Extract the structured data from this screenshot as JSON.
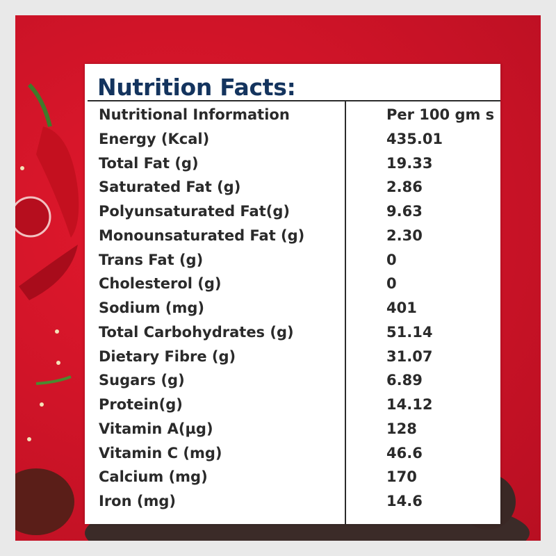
{
  "title": "Nutrition Facts:",
  "header": {
    "label": "Nutritional Information",
    "value": "Per 100 gm s"
  },
  "rows": [
    {
      "label": "Energy (Kcal)",
      "value": "435.01"
    },
    {
      "label": "Total Fat (g)",
      "value": "19.33"
    },
    {
      "label": "Saturated Fat (g)",
      "value": "2.86"
    },
    {
      "label": "Polyunsaturated Fat(g)",
      "value": "9.63"
    },
    {
      "label": "Monounsaturated Fat (g)",
      "value": "2.30"
    },
    {
      "label": "Trans Fat (g)",
      "value": "0"
    },
    {
      "label": "Cholesterol (g)",
      "value": "0"
    },
    {
      "label": "Sodium (mg)",
      "value": "401"
    },
    {
      "label": "Total Carbohydrates (g)",
      "value": "51.14"
    },
    {
      "label": "Dietary Fibre (g)",
      "value": "31.07"
    },
    {
      "label": "Sugars (g)",
      "value": "6.89"
    },
    {
      "label": "Protein(g)",
      "value": "14.12"
    },
    {
      "label": "Vitamin A(µg)",
      "value": "128"
    },
    {
      "label": "Vitamin C (mg)",
      "value": "46.6"
    },
    {
      "label": "Calcium (mg)",
      "value": "170"
    },
    {
      "label": "Iron (mg)",
      "value": "14.6"
    }
  ],
  "colors": {
    "background": "#d01428",
    "title": "#14345e",
    "text": "#2a2a2a"
  }
}
